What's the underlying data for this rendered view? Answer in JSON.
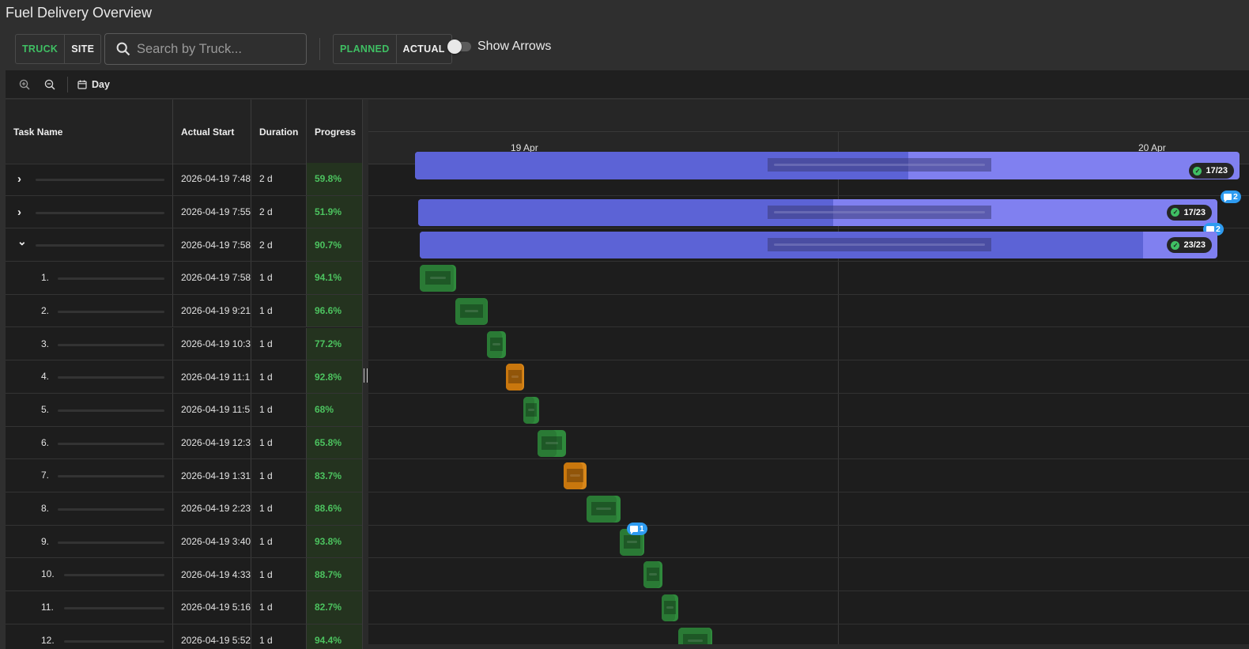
{
  "app": {
    "title": "Fuel Delivery Overview"
  },
  "toolbar": {
    "group_by": {
      "truck": "TRUCK",
      "site": "SITE",
      "active": "truck"
    },
    "search": {
      "placeholder": "Search by Truck..."
    },
    "mode": {
      "planned": "PLANNED",
      "actual": "ACTUAL",
      "active": "planned"
    },
    "show_arrows": {
      "label": "Show Arrows",
      "on": false
    }
  },
  "gantt_toolbar": {
    "zoom_in": "zoom-in-icon",
    "zoom_out": "zoom-out-icon",
    "scale_label": "Day"
  },
  "grid": {
    "columns": {
      "name": "Task Name",
      "start": "Actual Start",
      "duration": "Duration",
      "progress": "Progress"
    },
    "rows": [
      {
        "kind": "parent",
        "expanded": false,
        "start": "2026-04-19 7:48",
        "duration": "2 d",
        "progress": "59.8%"
      },
      {
        "kind": "parent",
        "expanded": false,
        "start": "2026-04-19 7:55",
        "duration": "2 d",
        "progress": "51.9%"
      },
      {
        "kind": "parent",
        "expanded": true,
        "start": "2026-04-19 7:58",
        "duration": "2 d",
        "progress": "90.7%"
      },
      {
        "kind": "child",
        "num": "1.",
        "start": "2026-04-19 7:58",
        "duration": "1 d",
        "progress": "94.1%"
      },
      {
        "kind": "child",
        "num": "2.",
        "start": "2026-04-19 9:21",
        "duration": "1 d",
        "progress": "96.6%"
      },
      {
        "kind": "child",
        "num": "3.",
        "start": "2026-04-19 10:3",
        "duration": "1 d",
        "progress": "77.2%"
      },
      {
        "kind": "child",
        "num": "4.",
        "start": "2026-04-19 11:1",
        "duration": "1 d",
        "progress": "92.8%"
      },
      {
        "kind": "child",
        "num": "5.",
        "start": "2026-04-19 11:5",
        "duration": "1 d",
        "progress": "68%"
      },
      {
        "kind": "child",
        "num": "6.",
        "start": "2026-04-19 12:3",
        "duration": "1 d",
        "progress": "65.8%"
      },
      {
        "kind": "child",
        "num": "7.",
        "start": "2026-04-19 1:31",
        "duration": "1 d",
        "progress": "83.7%"
      },
      {
        "kind": "child",
        "num": "8.",
        "start": "2026-04-19 2:23",
        "duration": "1 d",
        "progress": "88.6%"
      },
      {
        "kind": "child",
        "num": "9.",
        "start": "2026-04-19 3:40",
        "duration": "1 d",
        "progress": "93.8%"
      },
      {
        "kind": "child",
        "num": "10.",
        "start": "2026-04-19 4:33",
        "duration": "1 d",
        "progress": "88.7%"
      },
      {
        "kind": "child",
        "num": "11.",
        "start": "2026-04-19 5:16",
        "duration": "1 d",
        "progress": "82.7%"
      },
      {
        "kind": "child",
        "num": "12.",
        "start": "2026-04-19 5:52",
        "duration": "1 d",
        "progress": "94.4%"
      }
    ]
  },
  "timeline": {
    "dates": [
      "19 Apr",
      "20 Apr"
    ],
    "parent_bars": [
      {
        "badge": "17/23",
        "comments": "2",
        "color": "#8080f0"
      },
      {
        "badge": "17/23",
        "comments": "2",
        "color": "#8080f0"
      },
      {
        "badge": "23/23",
        "comments": "",
        "color": "#8080f0"
      }
    ],
    "first_bar_comments": "2",
    "task_bars": [
      {
        "status": "green"
      },
      {
        "status": "green"
      },
      {
        "status": "green"
      },
      {
        "status": "orange"
      },
      {
        "status": "green"
      },
      {
        "status": "green"
      },
      {
        "status": "orange"
      },
      {
        "status": "green"
      },
      {
        "status": "green",
        "comments": "1"
      },
      {
        "status": "green"
      },
      {
        "status": "green"
      },
      {
        "status": "green"
      }
    ]
  },
  "colors": {
    "accent_green": "#3fbf63",
    "parent_bar": "#8080f0",
    "parent_done": "#5c63d6",
    "task_green": "#2f8a3c",
    "task_orange": "#d8871a",
    "comment_blue": "#2e9bf0"
  }
}
